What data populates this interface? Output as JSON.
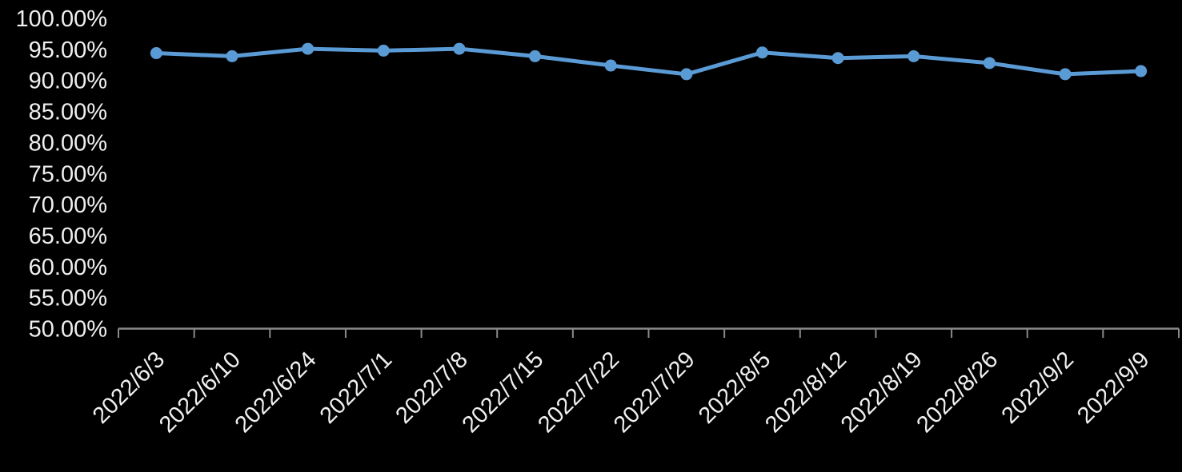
{
  "chart_data": {
    "type": "line",
    "title": "",
    "categories": [
      "2022/6/3",
      "2022/6/10",
      "2022/6/24",
      "2022/7/1",
      "2022/7/8",
      "2022/7/15",
      "2022/7/22",
      "2022/7/29",
      "2022/8/5",
      "2022/8/12",
      "2022/8/19",
      "2022/8/26",
      "2022/9/2",
      "2022/9/9"
    ],
    "values": [
      94.4,
      93.9,
      95.1,
      94.8,
      95.1,
      93.9,
      92.4,
      91.0,
      94.5,
      93.6,
      93.9,
      92.8,
      91.0,
      91.5
    ],
    "unit": "%",
    "ylim": [
      50,
      100
    ],
    "ytick_step": 5,
    "y_tick_labels": [
      "100.00%",
      "95.00%",
      "90.00%",
      "85.00%",
      "80.00%",
      "75.00%",
      "70.00%",
      "65.00%",
      "60.00%",
      "55.00%",
      "50.00%"
    ],
    "x_tick_label_rotation_deg": -45,
    "grid": "off",
    "legend": "none",
    "marker": "circle",
    "colors": {
      "background": "#000000",
      "line": "#5B9BD5",
      "marker": "#5B9BD5",
      "axis": "#8A8A8A",
      "labels": "#EFEFEF"
    }
  }
}
